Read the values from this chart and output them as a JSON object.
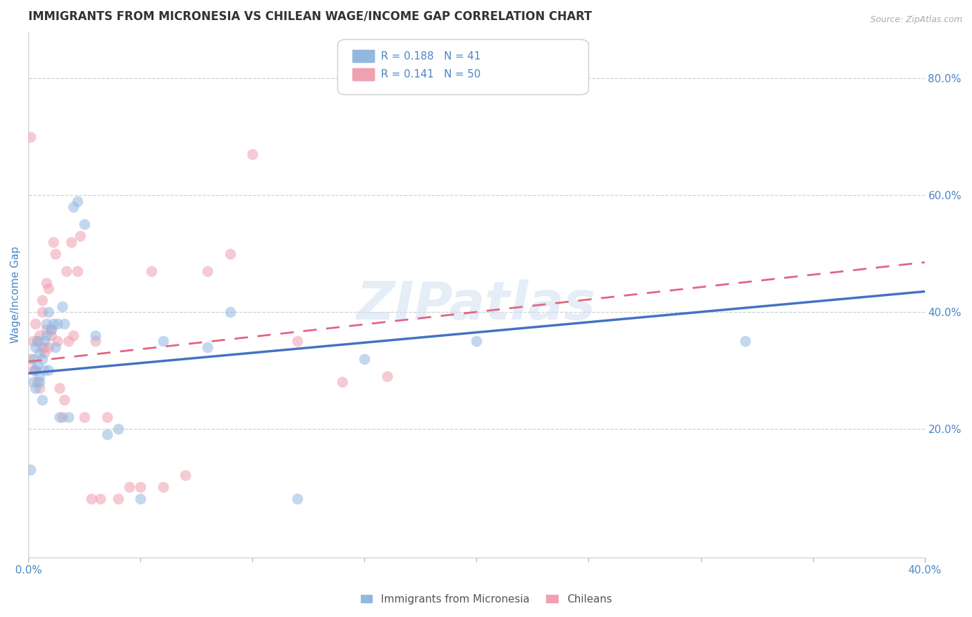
{
  "title": "IMMIGRANTS FROM MICRONESIA VS CHILEAN WAGE/INCOME GAP CORRELATION CHART",
  "source": "Source: ZipAtlas.com",
  "ylabel": "Wage/Income Gap",
  "xlim": [
    0.0,
    0.4
  ],
  "ylim": [
    -0.02,
    0.88
  ],
  "yticks": [
    0.2,
    0.4,
    0.6,
    0.8
  ],
  "ytick_labels": [
    "20.0%",
    "40.0%",
    "60.0%",
    "80.0%"
  ],
  "xtick_left": 0.0,
  "xtick_right": 0.4,
  "xtick_label_left": "0.0%",
  "xtick_label_right": "40.0%",
  "color_blue": "#92b8e0",
  "color_pink": "#f0a0b0",
  "color_blue_line": "#4472c4",
  "color_pink_line": "#e06680",
  "color_axis_label": "#4a86c8",
  "color_tick_label": "#4a86c8",
  "legend_R1": "0.188",
  "legend_N1": "41",
  "legend_R2": "0.141",
  "legend_N2": "50",
  "legend_label1": "Immigrants from Micronesia",
  "legend_label2": "Chileans",
  "watermark": "ZIPatlas",
  "blue_x": [
    0.001,
    0.002,
    0.002,
    0.003,
    0.003,
    0.003,
    0.004,
    0.004,
    0.005,
    0.005,
    0.005,
    0.006,
    0.006,
    0.007,
    0.007,
    0.008,
    0.008,
    0.009,
    0.009,
    0.01,
    0.011,
    0.012,
    0.013,
    0.014,
    0.015,
    0.016,
    0.018,
    0.02,
    0.022,
    0.025,
    0.03,
    0.035,
    0.04,
    0.06,
    0.08,
    0.09,
    0.12,
    0.15,
    0.2,
    0.32,
    0.05
  ],
  "blue_y": [
    0.13,
    0.32,
    0.28,
    0.3,
    0.34,
    0.27,
    0.31,
    0.35,
    0.28,
    0.33,
    0.29,
    0.32,
    0.25,
    0.35,
    0.3,
    0.36,
    0.38,
    0.3,
    0.4,
    0.37,
    0.38,
    0.34,
    0.38,
    0.22,
    0.41,
    0.38,
    0.22,
    0.58,
    0.59,
    0.55,
    0.36,
    0.19,
    0.2,
    0.35,
    0.34,
    0.4,
    0.08,
    0.32,
    0.35,
    0.35,
    0.08
  ],
  "pink_x": [
    0.001,
    0.001,
    0.002,
    0.002,
    0.003,
    0.003,
    0.004,
    0.004,
    0.005,
    0.005,
    0.006,
    0.006,
    0.006,
    0.007,
    0.007,
    0.008,
    0.008,
    0.009,
    0.009,
    0.01,
    0.01,
    0.011,
    0.012,
    0.013,
    0.014,
    0.015,
    0.016,
    0.017,
    0.018,
    0.019,
    0.02,
    0.022,
    0.023,
    0.025,
    0.028,
    0.035,
    0.04,
    0.05,
    0.055,
    0.06,
    0.07,
    0.08,
    0.1,
    0.12,
    0.14,
    0.16,
    0.03,
    0.032,
    0.045,
    0.09
  ],
  "pink_y": [
    0.32,
    0.7,
    0.35,
    0.3,
    0.3,
    0.38,
    0.28,
    0.35,
    0.36,
    0.27,
    0.34,
    0.4,
    0.42,
    0.33,
    0.34,
    0.45,
    0.37,
    0.44,
    0.34,
    0.36,
    0.37,
    0.52,
    0.5,
    0.35,
    0.27,
    0.22,
    0.25,
    0.47,
    0.35,
    0.52,
    0.36,
    0.47,
    0.53,
    0.22,
    0.08,
    0.22,
    0.08,
    0.1,
    0.47,
    0.1,
    0.12,
    0.47,
    0.67,
    0.35,
    0.28,
    0.29,
    0.35,
    0.08,
    0.1,
    0.5
  ],
  "blue_line_x0": 0.0,
  "blue_line_x1": 0.4,
  "blue_line_y0": 0.295,
  "blue_line_y1": 0.435,
  "pink_line_x0": 0.0,
  "pink_line_x1": 0.4,
  "pink_line_y0": 0.315,
  "pink_line_y1": 0.485,
  "grid_color": "#d0d0d0",
  "grid_linestyle": "--",
  "background_color": "#ffffff",
  "title_fontsize": 12,
  "axis_label_fontsize": 11,
  "tick_label_fontsize": 11,
  "scatter_size": 130,
  "scatter_alpha": 0.55,
  "scatter_linewidth": 0
}
